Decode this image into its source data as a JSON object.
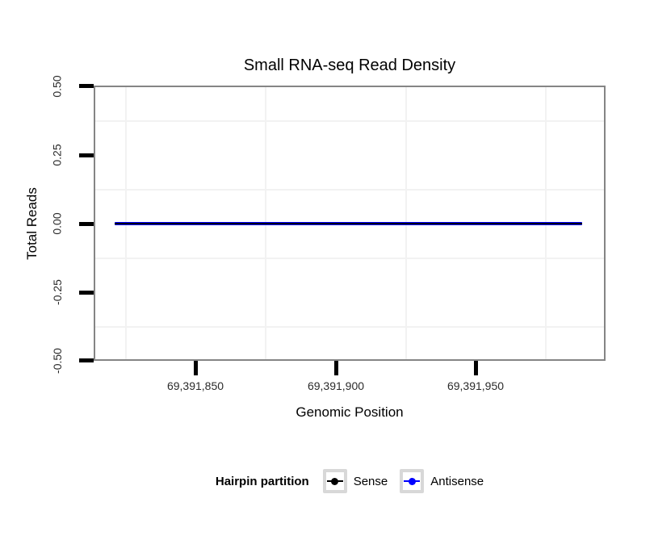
{
  "chart_data": {
    "type": "line",
    "title": "Small RNA-seq Read Density",
    "xlabel": "Genomic Position",
    "ylabel": "Total Reads",
    "x_ticks": {
      "labels": [
        "69,391,850",
        "69,391,900",
        "69,391,950"
      ],
      "values": [
        69391850,
        69391900,
        69391950
      ]
    },
    "y_ticks": {
      "labels": [
        "0.50",
        "0.25",
        "0.00",
        "-0.25",
        "-0.50"
      ],
      "values": [
        0.5,
        0.25,
        0.0,
        -0.25,
        -0.5
      ]
    },
    "xlim": [
      69391814,
      69391996
    ],
    "ylim": [
      -0.5,
      0.5
    ],
    "grid": {
      "major": "none",
      "minor_color": "#f2f2f2",
      "minor_at_midpoints": true
    },
    "legend_position": "bottom",
    "series": [
      {
        "name": "Sense",
        "color": "#000000",
        "y_value": 0,
        "x_start": 69391822,
        "x_end": 69391988,
        "shape": "flat horizontal line at zero"
      },
      {
        "name": "Antisense",
        "color": "#0000ff",
        "y_value": 0,
        "x_start": 69391822,
        "x_end": 69391988,
        "shape": "flat horizontal line at zero (overplotted)"
      }
    ],
    "legend": {
      "title": "Hairpin partition",
      "entries": [
        {
          "label": "Sense",
          "color": "#000000"
        },
        {
          "label": "Antisense",
          "color": "#0000ff"
        }
      ]
    }
  },
  "colors": {
    "panel_border": "#858585",
    "axis_tick": "#000000",
    "tick_label": "#2b2b2b",
    "background": "#ffffff"
  }
}
